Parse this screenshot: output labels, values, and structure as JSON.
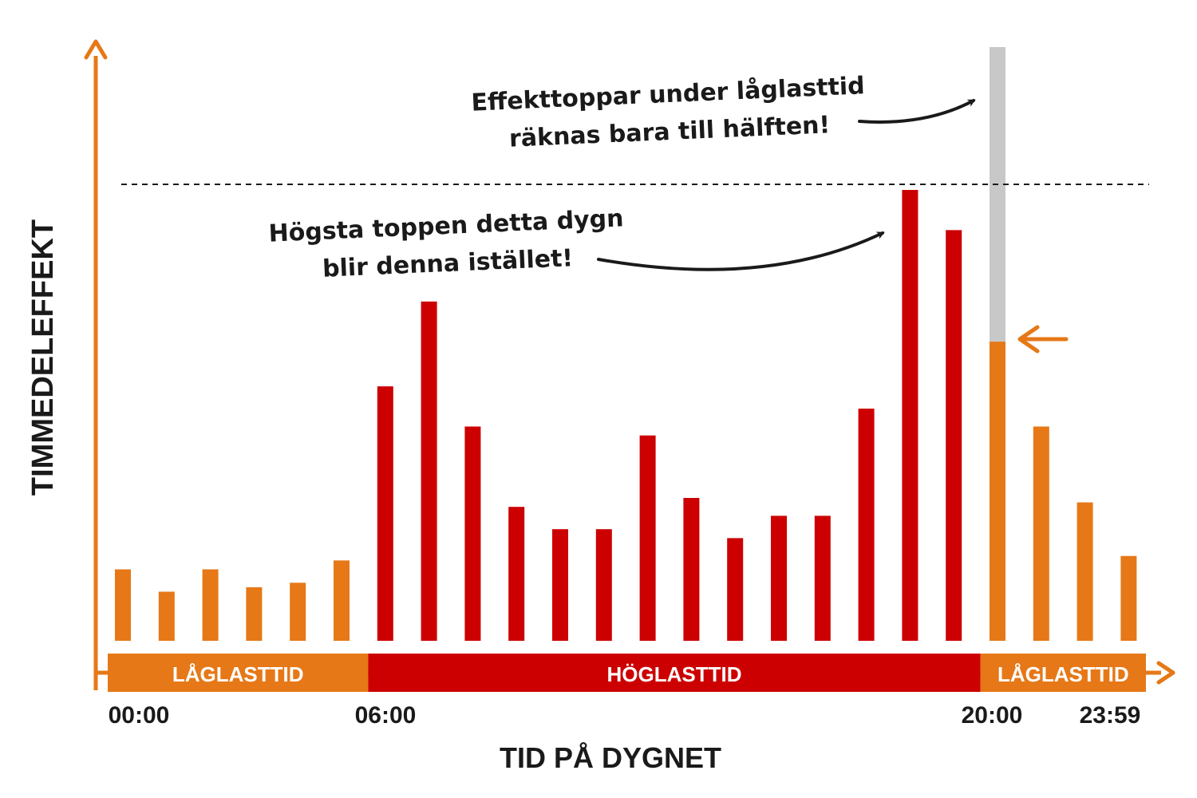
{
  "chart_data": {
    "type": "bar",
    "xlabel": "TID PÅ DYGNET",
    "ylabel": "TIMMEDELEFFEKT",
    "ylim": [
      0,
      100
    ],
    "grid": false,
    "hours": [
      0,
      1,
      2,
      3,
      4,
      5,
      6,
      7,
      8,
      9,
      10,
      11,
      12,
      13,
      14,
      15,
      16,
      17,
      18,
      19,
      20,
      21,
      22,
      23
    ],
    "values": [
      16,
      11,
      16,
      12,
      13,
      18,
      57,
      76,
      48,
      30,
      25,
      25,
      46,
      32,
      23,
      28,
      28,
      52,
      101,
      92,
      67,
      48,
      31,
      19
    ],
    "half_counted_hour": 20,
    "original_peak_value": 133,
    "reference_line_value": 101,
    "x_ticks": [
      "00:00",
      "06:00",
      "20:00",
      "23:59"
    ],
    "bands": [
      {
        "label": "LÅGLASTTID",
        "start_hour": 0,
        "end_hour": 6
      },
      {
        "label": "HÖGLASTTID",
        "start_hour": 6,
        "end_hour": 20
      },
      {
        "label": "LÅGLASTTID",
        "start_hour": 20,
        "end_hour": 24
      }
    ],
    "annotations": [
      {
        "lines": [
          "Effekttoppar under låglasttid",
          "räknas bara till hälften!"
        ]
      },
      {
        "lines": [
          "Högsta toppen detta dygn",
          "blir denna istället!"
        ]
      }
    ],
    "colors": {
      "low_load": "#e67817",
      "high_load": "#cc0000",
      "discounted": "#c8c8c8",
      "text": "#1a1a1a"
    }
  }
}
